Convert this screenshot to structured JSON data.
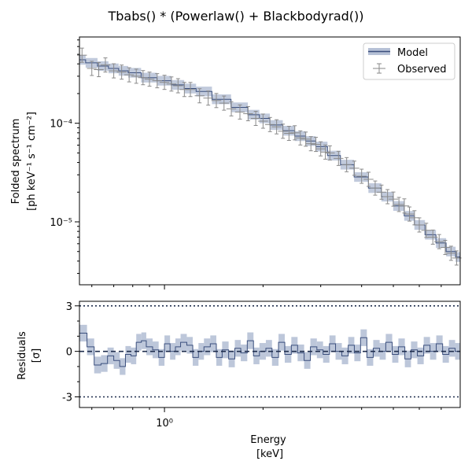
{
  "chart_data": [
    {
      "type": "line",
      "panel": "spectrum",
      "title": "Tbabs() * (Powerlaw() + Blackbodyrad())",
      "ylabel_line1": "Folded spectrum",
      "ylabel_line2": "[ph keV⁻¹ s⁻¹ cm⁻²]",
      "yscale": "log",
      "xscale": "log",
      "xlim": [
        0.55,
        8.0
      ],
      "ylim": [
        2.3e-06,
        0.00075
      ],
      "yticks": [
        {
          "value": 0.0001,
          "label": "10⁻⁴"
        },
        {
          "value": 1e-05,
          "label": "10⁻⁵"
        }
      ],
      "legend": {
        "placement": "top-right",
        "entries": [
          {
            "label": "Model"
          },
          {
            "label": "Observed"
          }
        ]
      },
      "series": [
        {
          "name": "Model",
          "x": [
            0.55,
            0.6,
            0.65,
            0.7,
            0.75,
            0.8,
            0.9,
            1.0,
            1.1,
            1.2,
            1.3,
            1.5,
            1.7,
            1.9,
            2.0,
            2.2,
            2.4,
            2.6,
            2.8,
            3.0,
            3.3,
            3.6,
            4.0,
            4.4,
            4.8,
            5.2,
            5.6,
            6.0,
            6.5,
            7.0,
            7.5,
            8.0
          ],
          "y": [
            0.00044,
            0.00041,
            0.00038,
            0.00036,
            0.00034,
            0.000325,
            0.00029,
            0.00027,
            0.000245,
            0.000225,
            0.00021,
            0.000175,
            0.000145,
            0.000122,
            0.000112,
            9.6e-05,
            8.4e-05,
            7.4e-05,
            6.6e-05,
            5.8e-05,
            4.7e-05,
            3.8e-05,
            2.85e-05,
            2.2e-05,
            1.8e-05,
            1.45e-05,
            1.15e-05,
            9.3e-06,
            7.4e-06,
            6.1e-06,
            5e-06,
            4.4e-06
          ]
        },
        {
          "name": "Observed",
          "x": [
            0.56,
            0.6,
            0.63,
            0.66,
            0.7,
            0.74,
            0.78,
            0.82,
            0.86,
            0.9,
            0.95,
            1.0,
            1.05,
            1.1,
            1.15,
            1.2,
            1.28,
            1.36,
            1.44,
            1.52,
            1.6,
            1.7,
            1.8,
            1.9,
            2.0,
            2.1,
            2.2,
            2.3,
            2.4,
            2.5,
            2.6,
            2.7,
            2.8,
            2.9,
            3.0,
            3.1,
            3.2,
            3.4,
            3.6,
            3.8,
            4.0,
            4.2,
            4.4,
            4.6,
            4.8,
            5.0,
            5.2,
            5.4,
            5.6,
            5.8,
            6.0,
            6.3,
            6.6,
            6.9,
            7.2,
            7.5,
            7.8
          ],
          "y": [
            0.00049,
            0.00036,
            0.00035,
            0.00039,
            0.00034,
            0.00033,
            0.00031,
            0.0003,
            0.00029,
            0.00028,
            0.00027,
            0.00026,
            0.00025,
            0.00024,
            0.00022,
            0.00022,
            0.00019,
            0.00018,
            0.00017,
            0.00016,
            0.00014,
            0.00013,
            0.000125,
            0.000112,
            0.000105,
            9.7e-05,
            9.2e-05,
            8.3e-05,
            7.9e-05,
            8e-05,
            7.1e-05,
            6.9e-05,
            6.2e-05,
            6.1e-05,
            5.5e-05,
            5.1e-05,
            5e-05,
            4.4e-05,
            3.8e-05,
            3.5e-05,
            2.9e-05,
            2.7e-05,
            2.2e-05,
            2e-05,
            1.8e-05,
            1.7e-05,
            1.5e-05,
            1.45e-05,
            1.2e-05,
            1.1e-05,
            9.3e-06,
            8.2e-06,
            7e-06,
            6.3e-06,
            5.5e-06,
            4.8e-06,
            4.3e-06
          ]
        }
      ]
    },
    {
      "type": "line",
      "panel": "residuals",
      "ylabel_line1": "Residuals",
      "ylabel_line2": "[σ]",
      "xlabel_line1": "Energy",
      "xlabel_line2": "[keV]",
      "xscale": "log",
      "xlim": [
        0.55,
        8.0
      ],
      "ylim": [
        -3.7,
        3.3
      ],
      "yticks": [
        {
          "value": 3,
          "label": "3"
        },
        {
          "value": 0,
          "label": "0"
        },
        {
          "value": -3,
          "label": "-3"
        }
      ],
      "xticks": [
        {
          "value": 1.0,
          "label": "10⁰"
        }
      ],
      "reference_lines": [
        3,
        0,
        -3
      ],
      "series": [
        {
          "name": "Residuals",
          "x": [
            0.55,
            0.58,
            0.61,
            0.64,
            0.67,
            0.7,
            0.73,
            0.76,
            0.79,
            0.82,
            0.85,
            0.88,
            0.92,
            0.96,
            1.0,
            1.04,
            1.08,
            1.12,
            1.17,
            1.22,
            1.27,
            1.32,
            1.38,
            1.44,
            1.5,
            1.57,
            1.64,
            1.71,
            1.79,
            1.87,
            1.95,
            2.04,
            2.13,
            2.23,
            2.33,
            2.44,
            2.55,
            2.67,
            2.79,
            2.92,
            3.05,
            3.19,
            3.33,
            3.48,
            3.64,
            3.8,
            3.97,
            4.15,
            4.34,
            4.54,
            4.74,
            4.96,
            5.18,
            5.42,
            5.66,
            5.92,
            6.19,
            6.47,
            6.76,
            7.07,
            7.39,
            7.72
          ],
          "y": [
            1.2,
            0.3,
            -0.9,
            -0.8,
            -0.3,
            -0.6,
            -1.0,
            -0.2,
            -0.3,
            0.6,
            0.7,
            0.3,
            0.1,
            -0.4,
            0.5,
            0.0,
            0.3,
            0.6,
            0.4,
            -0.4,
            0.0,
            0.3,
            0.5,
            -0.4,
            0.1,
            -0.5,
            0.2,
            -0.1,
            0.7,
            -0.3,
            0.0,
            0.2,
            -0.4,
            0.6,
            -0.2,
            0.4,
            -0.1,
            -0.6,
            0.3,
            0.1,
            -0.2,
            0.5,
            0.0,
            -0.3,
            0.4,
            -0.1,
            0.9,
            -0.4,
            0.2,
            0.0,
            0.6,
            -0.2,
            0.3,
            -0.5,
            0.1,
            -0.3,
            0.4,
            0.0,
            0.5,
            -0.2,
            0.2,
            0.0
          ]
        }
      ]
    }
  ]
}
